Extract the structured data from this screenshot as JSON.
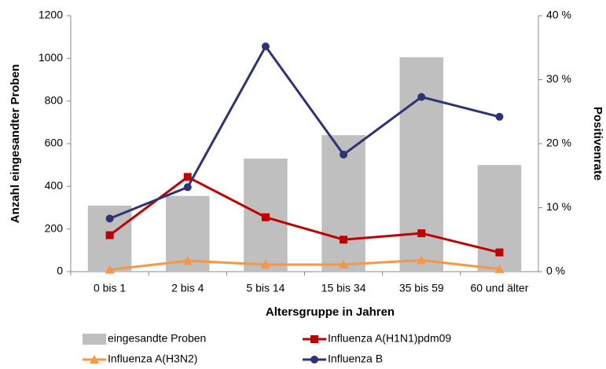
{
  "chart_data": {
    "type": "bar-line",
    "x_label": "Altersgruppe in Jahren",
    "y_label": "Anzahl eingesandter Proben",
    "y2_label": "Positivenrate",
    "categories": [
      "0 bis 1",
      "2 bis 4",
      "5 bis 14",
      "15 bis 34",
      "35 bis 59",
      "60 und älter"
    ],
    "ylim": [
      0,
      1200
    ],
    "yticks": [
      0,
      200,
      400,
      600,
      800,
      1000,
      1200
    ],
    "y2lim": [
      0,
      40
    ],
    "y2ticks": [
      {
        "value": 0,
        "label": "0 %"
      },
      {
        "value": 10,
        "label": "10 %"
      },
      {
        "value": 20,
        "label": "20 %"
      },
      {
        "value": 30,
        "label": "30 %"
      },
      {
        "value": 40,
        "label": "40 %"
      }
    ],
    "series": [
      {
        "name": "eingesandte Proben",
        "kind": "bar",
        "color": "#bfbfbf",
        "values": [
          310,
          355,
          530,
          640,
          1005,
          500
        ]
      },
      {
        "name": "Influenza A(H1N1)pdm09",
        "kind": "line",
        "marker": "square",
        "axis": "y2",
        "color": "#c00000",
        "values": [
          5.7,
          14.8,
          8.5,
          5.0,
          6.0,
          3.0
        ]
      },
      {
        "name": "Influenza A(H3N2)",
        "kind": "line",
        "marker": "triangle",
        "axis": "y2",
        "color": "#f79646",
        "values": [
          0.3,
          1.7,
          1.1,
          1.1,
          1.8,
          0.4
        ]
      },
      {
        "name": "Influenza B",
        "kind": "line",
        "marker": "circle",
        "axis": "y2",
        "color": "#2e3374",
        "values": [
          8.3,
          13.2,
          35.2,
          18.3,
          27.3,
          24.2
        ]
      }
    ]
  }
}
